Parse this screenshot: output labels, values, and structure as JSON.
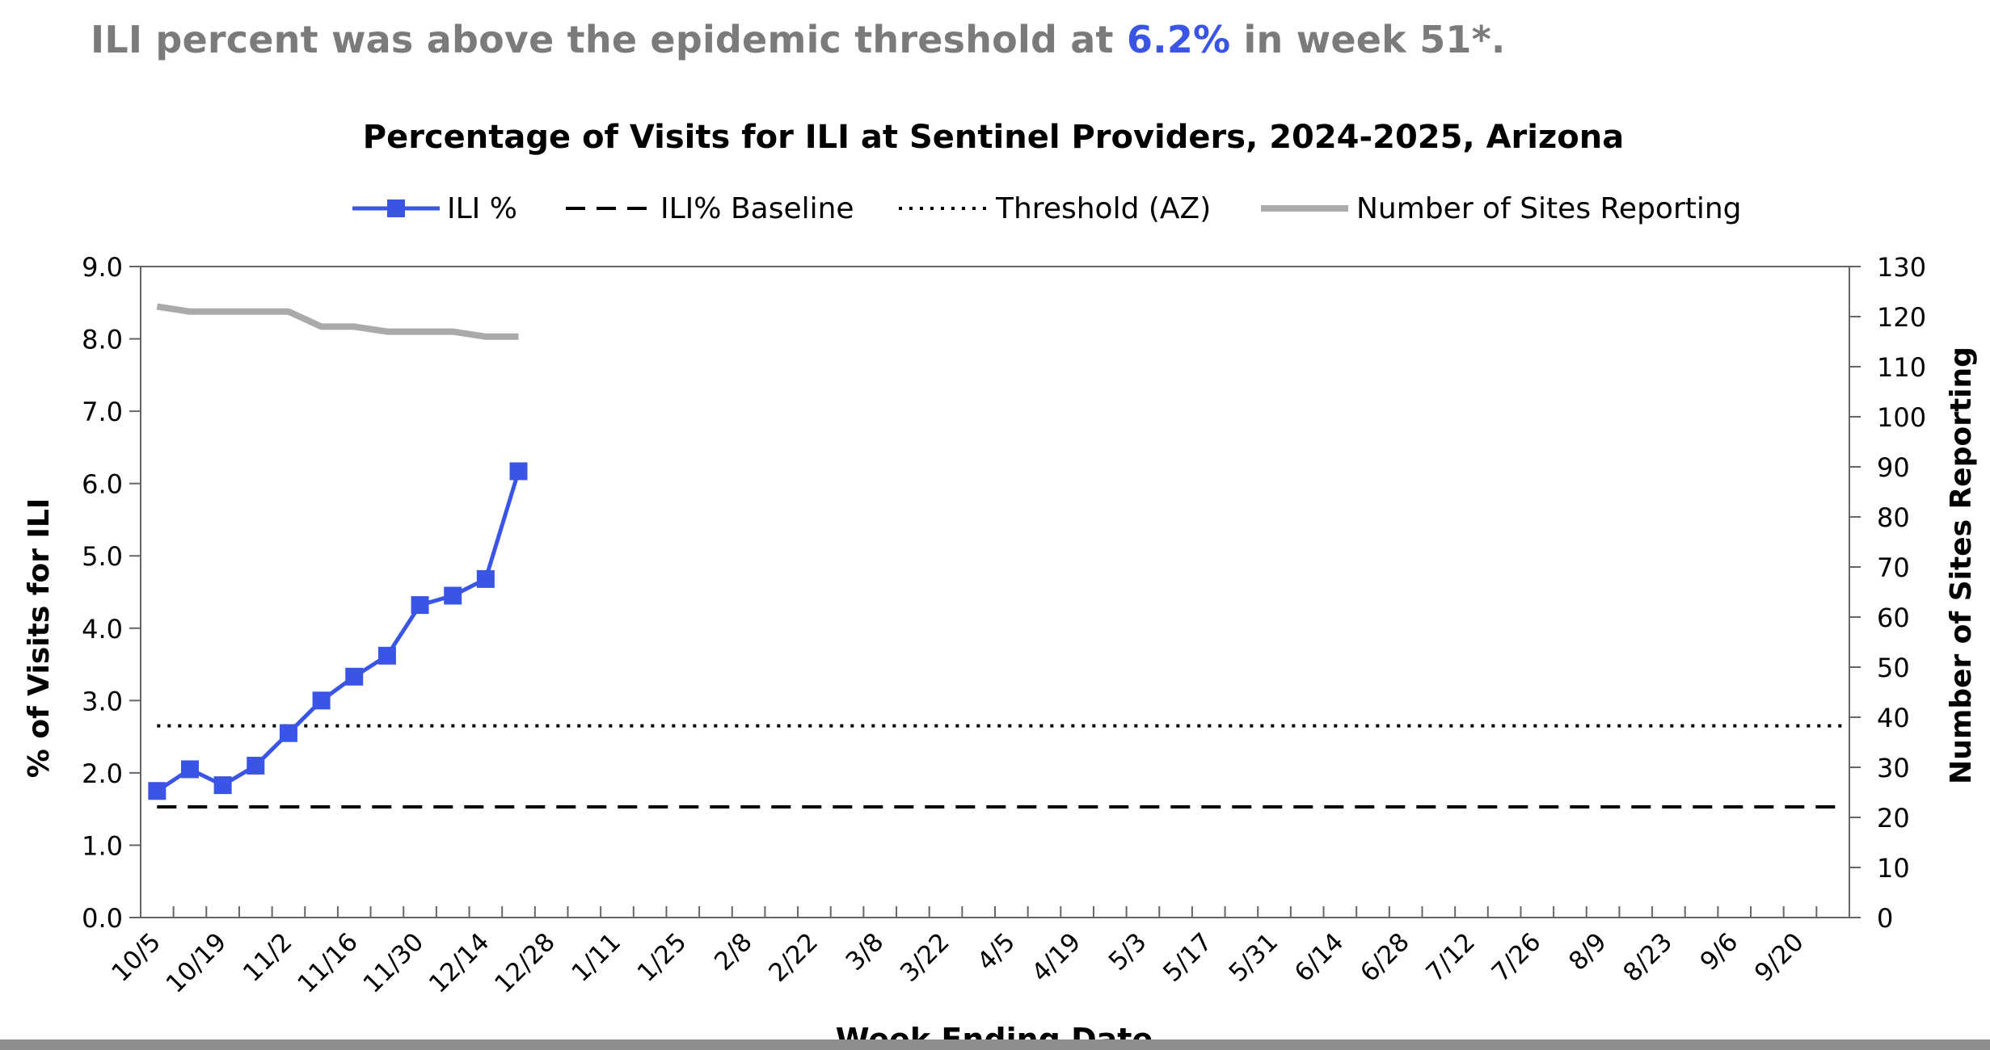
{
  "headline": {
    "prefix": "ILI percent was above the epidemic threshold at ",
    "value": "6.2%",
    "suffix": " in week 51*."
  },
  "chart_data": {
    "type": "line",
    "title": "Percentage of Visits for ILI at Sentinel Providers, 2024-2025, Arizona",
    "xlabel": "Week Ending Date",
    "ylabel": "% of Visits for ILI",
    "y2label": "Number of Sites Reporting",
    "ylim": [
      0,
      9
    ],
    "y2lim": [
      0,
      130
    ],
    "yticks": [
      "0.0",
      "1.0",
      "2.0",
      "3.0",
      "4.0",
      "5.0",
      "6.0",
      "7.0",
      "8.0",
      "9.0"
    ],
    "y2ticks": [
      "0",
      "10",
      "20",
      "30",
      "40",
      "50",
      "60",
      "70",
      "80",
      "90",
      "100",
      "110",
      "120",
      "130"
    ],
    "x_tick_labels": [
      "10/5",
      "10/19",
      "11/2",
      "11/16",
      "11/30",
      "12/14",
      "12/28",
      "1/11",
      "1/25",
      "2/8",
      "2/22",
      "3/8",
      "3/22",
      "4/5",
      "4/19",
      "5/3",
      "5/17",
      "5/31",
      "6/14",
      "6/28",
      "7/12",
      "7/26",
      "8/9",
      "8/23",
      "9/6",
      "9/20"
    ],
    "num_weeks": 52,
    "grid": false,
    "legend_position": "top",
    "series": [
      {
        "name": "ILI %",
        "axis": "left",
        "style": "solid-square-markers",
        "color": "#3a55e6",
        "values": [
          1.75,
          2.05,
          1.83,
          2.1,
          2.55,
          3.0,
          3.33,
          3.62,
          4.32,
          4.45,
          4.68,
          6.17
        ]
      },
      {
        "name": "ILI% Baseline",
        "axis": "left",
        "style": "dashed",
        "color": "#000000",
        "constant": 1.53
      },
      {
        "name": "Threshold (AZ)",
        "axis": "left",
        "style": "dotted",
        "color": "#000000",
        "constant": 2.65
      },
      {
        "name": "Number of Sites Reporting",
        "axis": "right",
        "style": "solid-thick",
        "color": "#aaaaaa",
        "values": [
          122,
          121,
          121,
          121,
          121,
          118,
          118,
          117,
          117,
          117,
          116,
          116
        ]
      }
    ]
  }
}
